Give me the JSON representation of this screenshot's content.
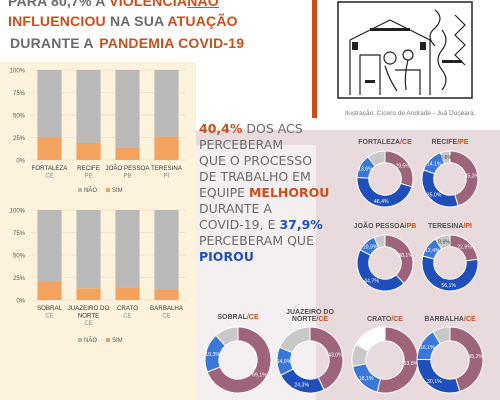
{
  "heading": {
    "line1_a": "PARA 80,7% A ",
    "line1_b": "VIOLÊNCIA",
    "line1_c": "NÃO",
    "line2_a": "INFLUENCIOU",
    "line2_b": " NA SUA ",
    "line2_c": "ATUAÇÃO",
    "line3_a": "DURANTE A ",
    "line3_b": "PANDEMIA COVID-19"
  },
  "illustration": {
    "caption": "Ilustração: Cícero de Andrade - Juã Ducéara."
  },
  "stat": {
    "pct1": "40,4%",
    "t1": " DOS ACS",
    "t2": "PERCEBERAM",
    "t3": "QUE O PROCESSO",
    "t4": "DE TRABALHO EM",
    "t5": "EQUIPE ",
    "t5b": "MELHOROU",
    "t6": "DURANTE A",
    "t7": "COVID-19, E ",
    "pct2": "37,9%",
    "t8": "PERCEBERAM QUE",
    "t9": "PIOROU"
  },
  "colors": {
    "sim": "#f4a35e",
    "nao": "#b9b9b9",
    "orange": "#c84e1c",
    "blue": "#1f4fbb",
    "blue_light": "#3a78d8",
    "mauve": "#9e647b",
    "gray_light": "#c8c8c8",
    "white": "#ffffff"
  },
  "chart_data": [
    {
      "type": "bar",
      "stacked": true,
      "categories": [
        "FORTALEZA CE",
        "RECIFE PE",
        "JOÃO PESSOA PB",
        "TERESINA PI"
      ],
      "category_lines": [
        [
          "FORTALEZA",
          "CE"
        ],
        [
          "RECIFE",
          "PE"
        ],
        [
          "JOÃO PESSOA",
          "PB"
        ],
        [
          "TERESINA",
          "PI"
        ]
      ],
      "series": [
        {
          "name": "NÃO",
          "values": [
            75,
            81,
            86,
            74
          ]
        },
        {
          "name": "SIM",
          "values": [
            25,
            19,
            14,
            26
          ]
        }
      ],
      "ylim": [
        0,
        100
      ],
      "yticks": [
        "0%",
        "25%",
        "50%",
        "75%",
        "100%"
      ],
      "legend": [
        "NÃO",
        "SIM"
      ],
      "legend_position": "bottom"
    },
    {
      "type": "bar",
      "stacked": true,
      "categories": [
        "SOBRAL CE",
        "JUAZEIRO DO NORTE CE",
        "CRATO CE",
        "BARBALHA CE"
      ],
      "category_lines": [
        [
          "SOBRAL",
          "CE"
        ],
        [
          "JUAZEIRO DO",
          "NORTE",
          "CE"
        ],
        [
          "CRATO",
          "CE"
        ],
        [
          "BARBALHA",
          "CE"
        ]
      ],
      "series": [
        {
          "name": "NÃO",
          "values": [
            80,
            87,
            86,
            88
          ]
        },
        {
          "name": "SIM",
          "values": [
            20,
            13,
            14,
            12
          ]
        }
      ],
      "ylim": [
        0,
        100
      ],
      "yticks": [
        "0%",
        "25%",
        "50%",
        "75%",
        "100%"
      ],
      "legend": [
        "NÃO",
        "SIM"
      ],
      "legend_position": "bottom"
    },
    {
      "type": "pie",
      "donut": true,
      "city": "FORTALEZA",
      "state": "/CE",
      "slices": [
        {
          "color": "#9e647b",
          "value": 29.5,
          "label": "29,5%"
        },
        {
          "color": "#1f4fbb",
          "value": 46.4,
          "label": "46,4%"
        },
        {
          "color": "#3a78d8",
          "value": 13.6,
          "label": "13,6%"
        },
        {
          "color": "#c8c8c8",
          "value": 10.5,
          "label": ""
        }
      ]
    },
    {
      "type": "pie",
      "donut": true,
      "city": "RECIFE",
      "state": "/PE",
      "slices": [
        {
          "color": "#9e647b",
          "value": 45.3,
          "label": "45,3%"
        },
        {
          "color": "#1f4fbb",
          "value": 35.0,
          "label": "35,0%"
        },
        {
          "color": "#3a78d8",
          "value": 14.1,
          "label": "14,1%"
        },
        {
          "color": "#c8c8c8",
          "value": 5.6,
          "label": "5,6%"
        }
      ]
    },
    {
      "type": "pie",
      "donut": true,
      "city": "JOÃO PESSOA",
      "state": "/PB",
      "slices": [
        {
          "color": "#9e647b",
          "value": 38.1,
          "label": "38,1%"
        },
        {
          "color": "#1f4fbb",
          "value": 44.7,
          "label": "44,7%"
        },
        {
          "color": "#3a78d8",
          "value": 10.9,
          "label": "10,9%"
        },
        {
          "color": "#c8c8c8",
          "value": 6.3,
          "label": ""
        }
      ]
    },
    {
      "type": "pie",
      "donut": true,
      "city": "TERESINA",
      "state": "/PI",
      "slices": [
        {
          "color": "#9e647b",
          "value": 22.9,
          "label": "22,9%"
        },
        {
          "color": "#1f4fbb",
          "value": 56.1,
          "label": "56,1%"
        },
        {
          "color": "#3a78d8",
          "value": 12.4,
          "label": "12,4%"
        },
        {
          "color": "#c8c8c8",
          "value": 8.6,
          "label": "8,6%"
        }
      ]
    },
    {
      "type": "pie",
      "donut": true,
      "city": "SOBRAL",
      "state": "/CE",
      "slices": [
        {
          "color": "#9e647b",
          "value": 69.1,
          "label": "69,1%"
        },
        {
          "color": "#3a78d8",
          "value": 19.3,
          "label": "19,3%"
        },
        {
          "color": "#c8c8c8",
          "value": 11.6,
          "label": ""
        }
      ]
    },
    {
      "type": "pie",
      "donut": true,
      "city": "JUAZEIRO DO NORTE",
      "state": "/CE",
      "slices": [
        {
          "color": "#9e647b",
          "value": 43.0,
          "label": "43,0%"
        },
        {
          "color": "#1f4fbb",
          "value": 24.3,
          "label": "24,3%"
        },
        {
          "color": "#3a78d8",
          "value": 14.0,
          "label": "14,0%"
        },
        {
          "color": "#c8c8c8",
          "value": 18.7,
          "label": ""
        }
      ]
    },
    {
      "type": "pie",
      "donut": true,
      "city": "CRATO",
      "state": "/CE",
      "slices": [
        {
          "color": "#9e647b",
          "value": 53.8,
          "label": "53,8%"
        },
        {
          "color": "#3a78d8",
          "value": 18.1,
          "label": "18,1%"
        },
        {
          "color": "#c8c8c8",
          "value": 10.9,
          "label": ""
        },
        {
          "color": "#ffffff",
          "value": 17.2,
          "label": ""
        }
      ]
    },
    {
      "type": "pie",
      "donut": true,
      "city": "BARBALHA",
      "state": "/CE",
      "slices": [
        {
          "color": "#9e647b",
          "value": 45.2,
          "label": "45,2%"
        },
        {
          "color": "#1f4fbb",
          "value": 30.1,
          "label": "30,1%"
        },
        {
          "color": "#3a78d8",
          "value": 16.1,
          "label": "16,1%"
        },
        {
          "color": "#c8c8c8",
          "value": 8.6,
          "label": ""
        }
      ]
    }
  ]
}
